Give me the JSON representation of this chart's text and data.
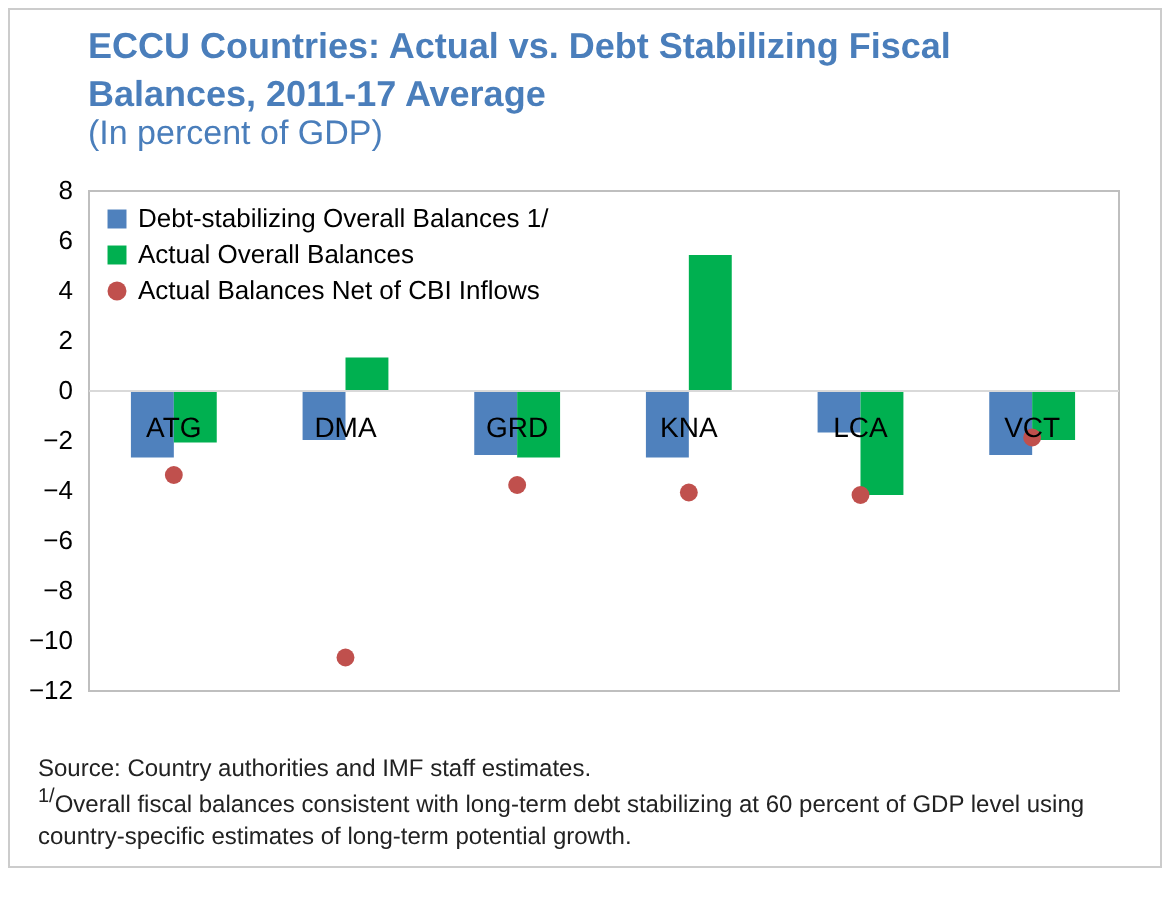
{
  "chart_data": {
    "type": "bar",
    "title": "ECCU Countries: Actual vs. Debt Stabilizing Fiscal Balances, 2011-17 Average",
    "subtitle": "(In percent of GDP)",
    "categories": [
      "ATG",
      "DMA",
      "GRD",
      "KNA",
      "LCA",
      "VCT"
    ],
    "series": [
      {
        "name": "Debt-stabilizing Overall Balances 1/",
        "type": "bar",
        "color": "#4f81bd",
        "values": [
          -2.7,
          -2.0,
          -2.6,
          -2.7,
          -1.7,
          -2.6
        ]
      },
      {
        "name": "Actual Overall Balances",
        "type": "bar",
        "color": "#00b050",
        "values": [
          -2.1,
          1.3,
          -2.7,
          5.4,
          -4.2,
          -2.0
        ]
      },
      {
        "name": "Actual Balances Net of CBI Inflows",
        "type": "scatter",
        "color": "#c0504d",
        "values": [
          -3.4,
          -10.7,
          -3.8,
          -4.1,
          -4.2,
          -1.9
        ]
      }
    ],
    "ylim": [
      -12,
      8
    ],
    "yticks": [
      -12,
      -10,
      -8,
      -6,
      -4,
      -2,
      0,
      2,
      4,
      6,
      8
    ],
    "legend": "top left",
    "marker": "circle",
    "annotations": [
      "Source: Country authorities and IMF staff estimates.",
      "$^{1/}$Overall fiscal balances consistent with long-term debt stabilizing at 60 percent of GDP level using country-specific estimates of long-term potential growth."
    ]
  }
}
